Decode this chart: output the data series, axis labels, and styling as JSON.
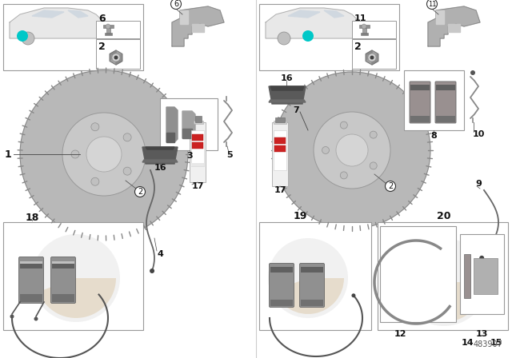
{
  "bg_color": "#ffffff",
  "part_num": "483907",
  "label_color": "#111111",
  "fs": 8,
  "fs_bold": 9,
  "border_color": "#999999",
  "disc_color": "#b0b0b0",
  "disc_hub_color": "#cccccc",
  "disc_center_color": "#d8d8d8",
  "part_color": "#a0a0a0",
  "teal": "#00c8c8",
  "watermark_orange": "#e8c8a0",
  "watermark_gray": "#c8c8c8"
}
